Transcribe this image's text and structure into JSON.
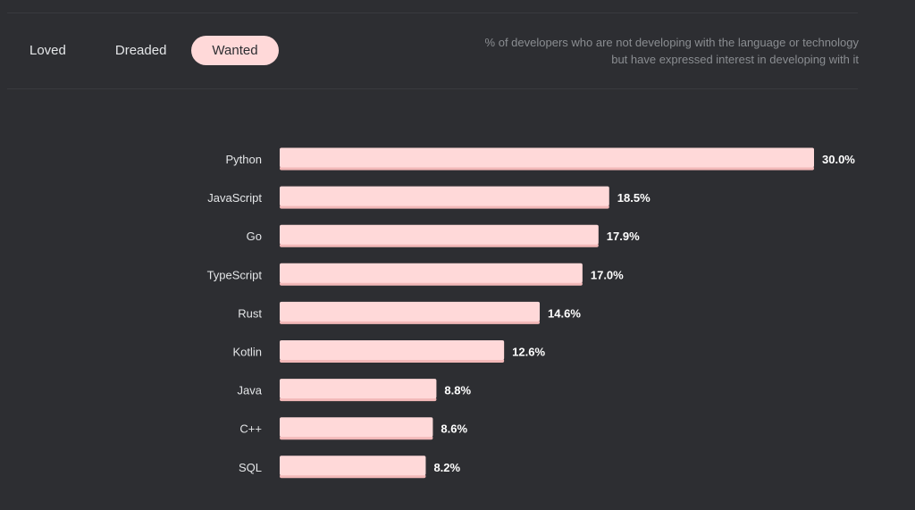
{
  "tabs": [
    {
      "label": "Loved",
      "active": false
    },
    {
      "label": "Dreaded",
      "active": false
    },
    {
      "label": "Wanted",
      "active": true
    }
  ],
  "description": "% of developers who are not developing with the language or technology but have expressed interest in developing with it",
  "colors": {
    "background": "#2d2e32",
    "bar": "#ffd9d9",
    "bar_shadow": "#f2b8b8",
    "label_text": "#e4e6e8",
    "value_text": "#ffffff",
    "muted_text": "#8a8d91"
  },
  "chart_data": {
    "type": "bar",
    "orientation": "horizontal",
    "categories": [
      "Python",
      "JavaScript",
      "Go",
      "TypeScript",
      "Rust",
      "Kotlin",
      "Java",
      "C++",
      "SQL"
    ],
    "values": [
      30.0,
      18.5,
      17.9,
      17.0,
      14.6,
      12.6,
      8.8,
      8.6,
      8.2
    ],
    "value_labels": [
      "30.0%",
      "18.5%",
      "17.9%",
      "17.0%",
      "14.6%",
      "12.6%",
      "8.8%",
      "8.6%",
      "8.2%"
    ],
    "unit": "%",
    "xlim": [
      0,
      30.0
    ],
    "grid": false,
    "legend": "none"
  }
}
